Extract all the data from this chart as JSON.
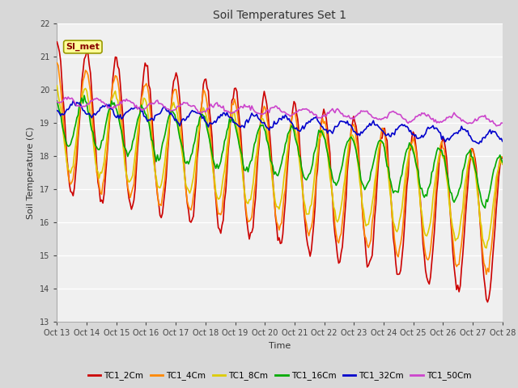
{
  "title": "Soil Temperatures Set 1",
  "xlabel": "Time",
  "ylabel": "Soil Temperature (C)",
  "ylim": [
    13.0,
    22.0
  ],
  "yticks": [
    13.0,
    14.0,
    15.0,
    16.0,
    17.0,
    18.0,
    19.0,
    20.0,
    21.0,
    22.0
  ],
  "xtick_labels": [
    "Oct 13",
    "Oct 14",
    "Oct 15",
    "Oct 16",
    "Oct 17",
    "Oct 18",
    "Oct 19",
    "Oct 20",
    "Oct 21",
    "Oct 22",
    "Oct 23",
    "Oct 24",
    "Oct 25",
    "Oct 26",
    "Oct 27",
    "Oct 28"
  ],
  "annotation": "SI_met",
  "lines": [
    {
      "label": "TC1_2Cm",
      "color": "#cc0000",
      "lw": 1.2
    },
    {
      "label": "TC1_4Cm",
      "color": "#ff8800",
      "lw": 1.2
    },
    {
      "label": "TC1_8Cm",
      "color": "#ddcc00",
      "lw": 1.2
    },
    {
      "label": "TC1_16Cm",
      "color": "#00aa00",
      "lw": 1.2
    },
    {
      "label": "TC1_32Cm",
      "color": "#0000cc",
      "lw": 1.2
    },
    {
      "label": "TC1_50Cm",
      "color": "#cc44cc",
      "lw": 1.2
    }
  ],
  "bg_color": "#d8d8d8",
  "plot_bg": "#f0f0f0",
  "grid_color": "#ffffff"
}
